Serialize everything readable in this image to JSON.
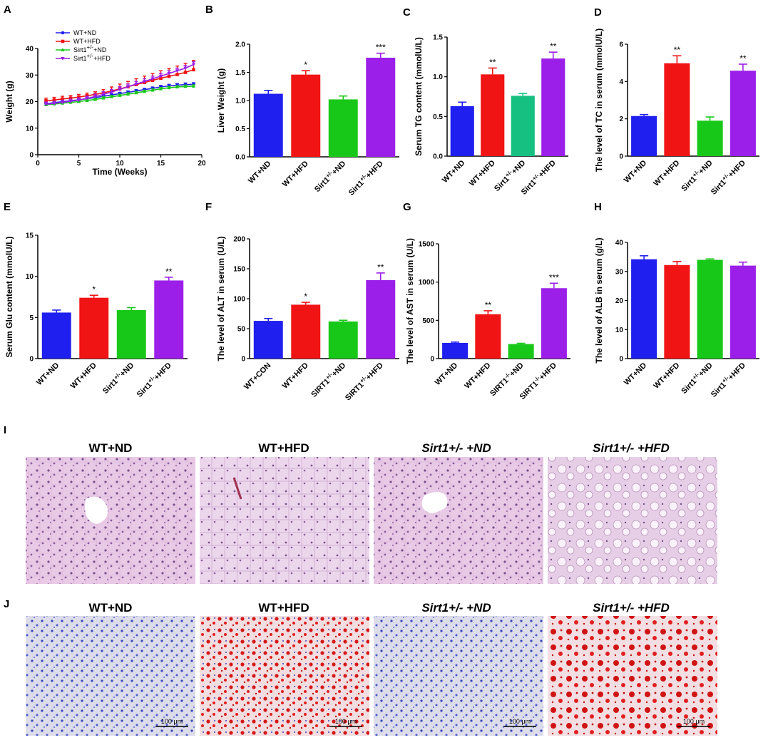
{
  "panel_letters": [
    "A",
    "B",
    "C",
    "D",
    "E",
    "F",
    "G",
    "H",
    "I",
    "J"
  ],
  "colors": {
    "wt_nd": "#1f1fef",
    "wt_hfd": "#f01414",
    "sirt_nd": "#18c818",
    "sirt_hfd": "#9b1fe8",
    "sirt_nd_teal": "#16c080"
  },
  "chart_data": [
    {
      "panel": "A",
      "type": "line",
      "xlabel": "Time (Weeks)",
      "ylabel": "Weight (g)",
      "xlim": [
        0,
        20
      ],
      "ylim": [
        0,
        40
      ],
      "xticks": [
        "0",
        "5",
        "10",
        "15",
        "20"
      ],
      "yticks": [
        "0",
        "10",
        "20",
        "30",
        "40"
      ],
      "legend": [
        "WT+ND",
        "WT+HFD",
        "Sirt1+/-+ND",
        "Sirt1+/-+HFD"
      ],
      "x": [
        1,
        2,
        3,
        4,
        5,
        6,
        7,
        8,
        9,
        10,
        11,
        12,
        13,
        14,
        15,
        16,
        17,
        18,
        19
      ],
      "series": [
        {
          "name": "WT+ND",
          "values": [
            19.2,
            19.6,
            20.0,
            20.3,
            20.7,
            21.1,
            21.5,
            22.0,
            22.5,
            23.0,
            23.5,
            24.0,
            24.5,
            25.0,
            25.5,
            25.9,
            26.2,
            26.4,
            26.5
          ],
          "err": [
            0.5,
            0.5,
            0.5,
            0.5,
            0.5,
            0.5,
            0.5,
            0.5,
            0.5,
            0.5,
            0.5,
            0.5,
            0.5,
            0.5,
            0.6,
            0.6,
            0.6,
            0.6,
            0.6
          ]
        },
        {
          "name": "WT+HFD",
          "values": [
            20.3,
            20.6,
            21.0,
            21.3,
            21.7,
            22.2,
            22.7,
            23.3,
            24.0,
            24.8,
            25.6,
            26.4,
            27.2,
            28.0,
            28.8,
            29.5,
            30.2,
            31.0,
            32.0
          ],
          "err": [
            1.0,
            1.0,
            1.0,
            1.0,
            1.0,
            1.0,
            1.0,
            1.2,
            1.5,
            1.8,
            2.0,
            2.2,
            2.4,
            2.6,
            2.8,
            3.0,
            3.2,
            3.4,
            3.5
          ]
        },
        {
          "name": "Sirt1+/-+ND",
          "values": [
            18.8,
            19.1,
            19.4,
            19.7,
            20.0,
            20.4,
            20.8,
            21.3,
            21.8,
            22.3,
            22.8,
            23.3,
            23.8,
            24.3,
            24.8,
            25.2,
            25.5,
            25.7,
            25.8
          ],
          "err": [
            0.5,
            0.5,
            0.5,
            0.5,
            0.5,
            0.5,
            0.5,
            0.5,
            0.5,
            0.5,
            0.5,
            0.5,
            0.5,
            0.5,
            0.5,
            0.5,
            0.5,
            0.5,
            0.5
          ]
        },
        {
          "name": "Sirt1+/-+HFD",
          "values": [
            19.0,
            19.3,
            19.7,
            20.1,
            20.6,
            21.2,
            21.9,
            22.7,
            23.6,
            24.6,
            25.6,
            26.6,
            27.6,
            28.6,
            29.6,
            30.6,
            31.6,
            32.6,
            34.0
          ],
          "err": [
            0.8,
            0.8,
            0.8,
            0.8,
            0.8,
            0.8,
            0.9,
            1.0,
            1.0,
            1.0,
            1.0,
            1.0,
            1.0,
            1.0,
            1.0,
            1.0,
            1.0,
            1.0,
            1.0
          ]
        }
      ]
    },
    {
      "panel": "B",
      "type": "bar",
      "ylabel": "Liver Weight (g)",
      "ylim": [
        0,
        2.0
      ],
      "yticks": [
        "0.0",
        "0.5",
        "1.0",
        "1.5",
        "2.0"
      ],
      "categories": [
        "WT+ND",
        "WT+HFD",
        "Sirt1+/-+ND",
        "Sirt1+/-+HFD"
      ],
      "values": [
        1.12,
        1.46,
        1.02,
        1.76
      ],
      "err": [
        0.06,
        0.07,
        0.06,
        0.08
      ],
      "stars": [
        "",
        "*",
        "",
        "***"
      ]
    },
    {
      "panel": "C",
      "type": "bar",
      "ylabel": "Serum TG content (mmolU/L)",
      "ylim": [
        0,
        1.5
      ],
      "yticks": [
        "0.0",
        "0.5",
        "1.0",
        "1.5"
      ],
      "categories": [
        "WT+ND",
        "WT+HFD",
        "Sirt1+/-+ND",
        "Sirt1+/-+HFD"
      ],
      "values": [
        0.63,
        1.03,
        0.76,
        1.23
      ],
      "err": [
        0.05,
        0.08,
        0.03,
        0.08
      ],
      "stars": [
        "",
        "**",
        "",
        "**"
      ]
    },
    {
      "panel": "D",
      "type": "bar",
      "ylabel": "The level of TC in serum (mmolU/L)",
      "ylim": [
        0,
        6
      ],
      "yticks": [
        "0",
        "2",
        "4",
        "6"
      ],
      "categories": [
        "WT+ND",
        "WT+HFD",
        "Sirt1+/-+ND",
        "Sirt1+/-+HFD"
      ],
      "values": [
        2.15,
        4.98,
        1.9,
        4.58
      ],
      "err": [
        0.08,
        0.4,
        0.2,
        0.35
      ],
      "stars": [
        "",
        "**",
        "",
        "**"
      ]
    },
    {
      "panel": "E",
      "type": "bar",
      "ylabel": "Serum Glu content (mmolU/L)",
      "ylim": [
        0,
        15
      ],
      "yticks": [
        "0",
        "5",
        "10",
        "15"
      ],
      "categories": [
        "WT+ND",
        "WT+HFD",
        "Sirt1+/-+ND",
        "Sirt1+/-+HFD"
      ],
      "values": [
        5.6,
        7.4,
        5.9,
        9.5
      ],
      "err": [
        0.3,
        0.3,
        0.3,
        0.4
      ],
      "stars": [
        "",
        "*",
        "",
        "**"
      ]
    },
    {
      "panel": "F",
      "type": "bar",
      "ylabel": "The level of ALT in serum (U/L)",
      "ylim": [
        0,
        200
      ],
      "yticks": [
        "0",
        "50",
        "100",
        "150",
        "200"
      ],
      "categories": [
        "WT+CON",
        "WT+HFD",
        "SIRT1+/-+ND",
        "SIRT1+/-+HFD"
      ],
      "values": [
        63,
        90,
        62,
        131
      ],
      "err": [
        4,
        4,
        2,
        12
      ],
      "stars": [
        "",
        "*",
        "",
        "**"
      ]
    },
    {
      "panel": "G",
      "type": "bar",
      "ylabel": "The level of AST in serum (U/L)",
      "ylim": [
        0,
        1500
      ],
      "yticks": [
        "0",
        "500",
        "1000",
        "1500"
      ],
      "categories": [
        "WT+ND",
        "WT+HFD",
        "SIRT1-/-+ND",
        "SIRT1-/-+HFD"
      ],
      "values": [
        205,
        580,
        190,
        920
      ],
      "err": [
        10,
        45,
        10,
        65
      ],
      "stars": [
        "",
        "**",
        "",
        "***"
      ]
    },
    {
      "panel": "H",
      "type": "bar",
      "ylabel": "The level of ALB in serum (g/L)",
      "ylim": [
        0,
        40
      ],
      "yticks": [
        "0",
        "10",
        "20",
        "30",
        "40"
      ],
      "categories": [
        "WT+ND",
        "WT+HFD",
        "Sirt1+/-+ND",
        "Sirt1+/-+HFD"
      ],
      "values": [
        34.2,
        32.2,
        34.0,
        32.0
      ],
      "err": [
        1.2,
        1.2,
        0.3,
        1.2
      ],
      "stars": [
        "",
        "",
        "",
        ""
      ]
    }
  ],
  "histology": {
    "I": {
      "titles": [
        "WT+ND",
        "WT+HFD",
        "Sirt1+/- +ND",
        "Sirt1+/- +HFD"
      ]
    },
    "J": {
      "titles": [
        "WT+ND",
        "WT+HFD",
        "Sirt1+/- +ND",
        "Sirt1+/- +HFD"
      ],
      "scale_bar": "100 μm"
    }
  }
}
